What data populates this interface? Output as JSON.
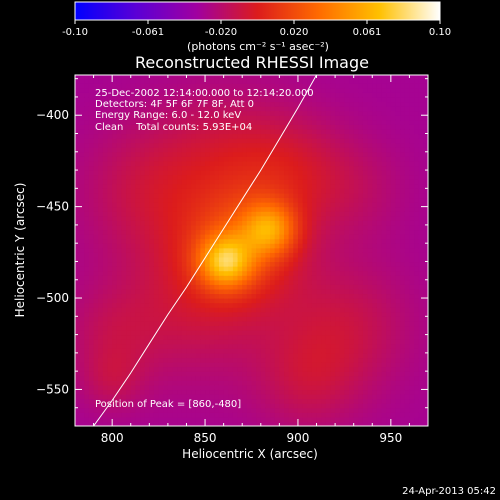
{
  "chart_data": {
    "type": "heatmap",
    "title": "Reconstructed RHESSI Image",
    "xlabel": "Heliocentric X (arcsec)",
    "ylabel": "Heliocentric Y (arcsec)",
    "xlim": [
      780,
      970
    ],
    "ylim": [
      -570,
      -378
    ],
    "x_ticks": [
      800,
      850,
      900,
      950
    ],
    "y_ticks": [
      -400,
      -450,
      -500,
      -550
    ],
    "colorbar": {
      "min": -0.1,
      "max": 0.1,
      "ticks": [
        "-0.10",
        "-0.061",
        "-0.020",
        "0.020",
        "0.061",
        "0.10"
      ],
      "label": "(photons cm⁻² s⁻¹ asec⁻²)",
      "colormap": [
        "#0000ff",
        "#5a00d6",
        "#a000a0",
        "#dc1c1c",
        "#ff6a00",
        "#ffc000",
        "#ffffff"
      ]
    },
    "annotations": [
      "25-Dec-2002 12:14:00.000 to 12:14:20.000",
      "Detectors: 4F 5F 6F 7F 8F, Att 0",
      "Energy Range: 6.0 - 12.0 keV",
      "Clean    Total counts: 5.93E+04"
    ],
    "peak_label": "Position of Peak = [860,-480]",
    "peak": [
      860,
      -480
    ],
    "limb_points": [
      [
        790,
        -570
      ],
      [
        800,
        -556
      ],
      [
        810,
        -541
      ],
      [
        820,
        -525
      ],
      [
        830,
        -509
      ],
      [
        840,
        -494
      ],
      [
        850,
        -478
      ],
      [
        860,
        -462
      ],
      [
        870,
        -446
      ],
      [
        880,
        -430
      ],
      [
        890,
        -413
      ],
      [
        900,
        -396
      ],
      [
        910,
        -378
      ]
    ],
    "sources": [
      {
        "x": 861,
        "y": -480,
        "amp": 0.06,
        "sigma": 10
      },
      {
        "x": 885,
        "y": -462,
        "amp": 0.05,
        "sigma": 10
      },
      {
        "x": 870,
        "y": -470,
        "amp": 0.04,
        "sigma": 22
      },
      {
        "x": 845,
        "y": -500,
        "amp": 0.02,
        "sigma": 30
      },
      {
        "x": 895,
        "y": -430,
        "amp": 0.02,
        "sigma": 22
      },
      {
        "x": 820,
        "y": -440,
        "amp": 0.018,
        "sigma": 25
      },
      {
        "x": 925,
        "y": -515,
        "amp": 0.018,
        "sigma": 25
      },
      {
        "x": 860,
        "y": -420,
        "amp": 0.016,
        "sigma": 25
      },
      {
        "x": 905,
        "y": -545,
        "amp": 0.015,
        "sigma": 20
      },
      {
        "x": 800,
        "y": -520,
        "amp": 0.012,
        "sigma": 18
      },
      {
        "x": 930,
        "y": -440,
        "amp": 0.01,
        "sigma": 20
      },
      {
        "x": 800,
        "y": -545,
        "amp": 0.012,
        "sigma": 12
      }
    ],
    "background": -0.03,
    "grid": false
  },
  "footer": {
    "timestamp": "24-Apr-2013 05:42"
  }
}
